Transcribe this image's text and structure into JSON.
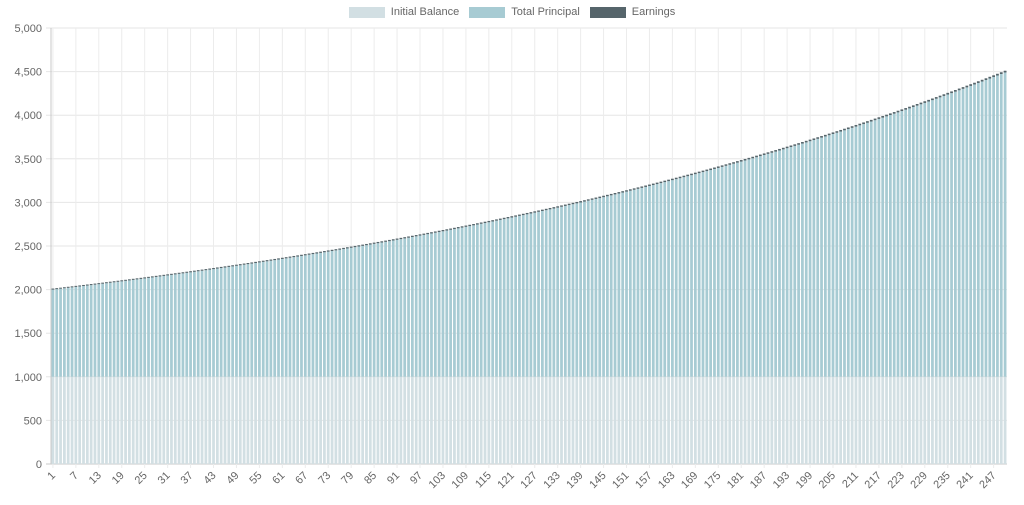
{
  "chart_data": {
    "type": "bar",
    "stacked": true,
    "n_periods": 250,
    "x_start": 1,
    "x_tick_step": 6,
    "ylim": [
      0,
      5000
    ],
    "y_ticks": [
      "0",
      "500",
      "1,000",
      "1,500",
      "2,000",
      "2,500",
      "3,000",
      "3,500",
      "4,000",
      "4,500",
      "5,000"
    ],
    "y_tick_values": [
      0,
      500,
      1000,
      1500,
      2000,
      2500,
      3000,
      3500,
      4000,
      4500,
      5000
    ],
    "legend_position": "top-center",
    "grid": true,
    "series": [
      {
        "name": "Initial Balance",
        "color": "#d2dfe3",
        "rule": "constant",
        "value": 1000
      },
      {
        "name": "Total Principal",
        "color": "#a7cbd3",
        "rule": "grow",
        "start": 1000,
        "end": 3490
      },
      {
        "name": "Earnings",
        "color": "#56656b",
        "rule": "grow",
        "start": 12,
        "end": 20
      }
    ],
    "title": "",
    "xlabel": "",
    "ylabel": ""
  }
}
